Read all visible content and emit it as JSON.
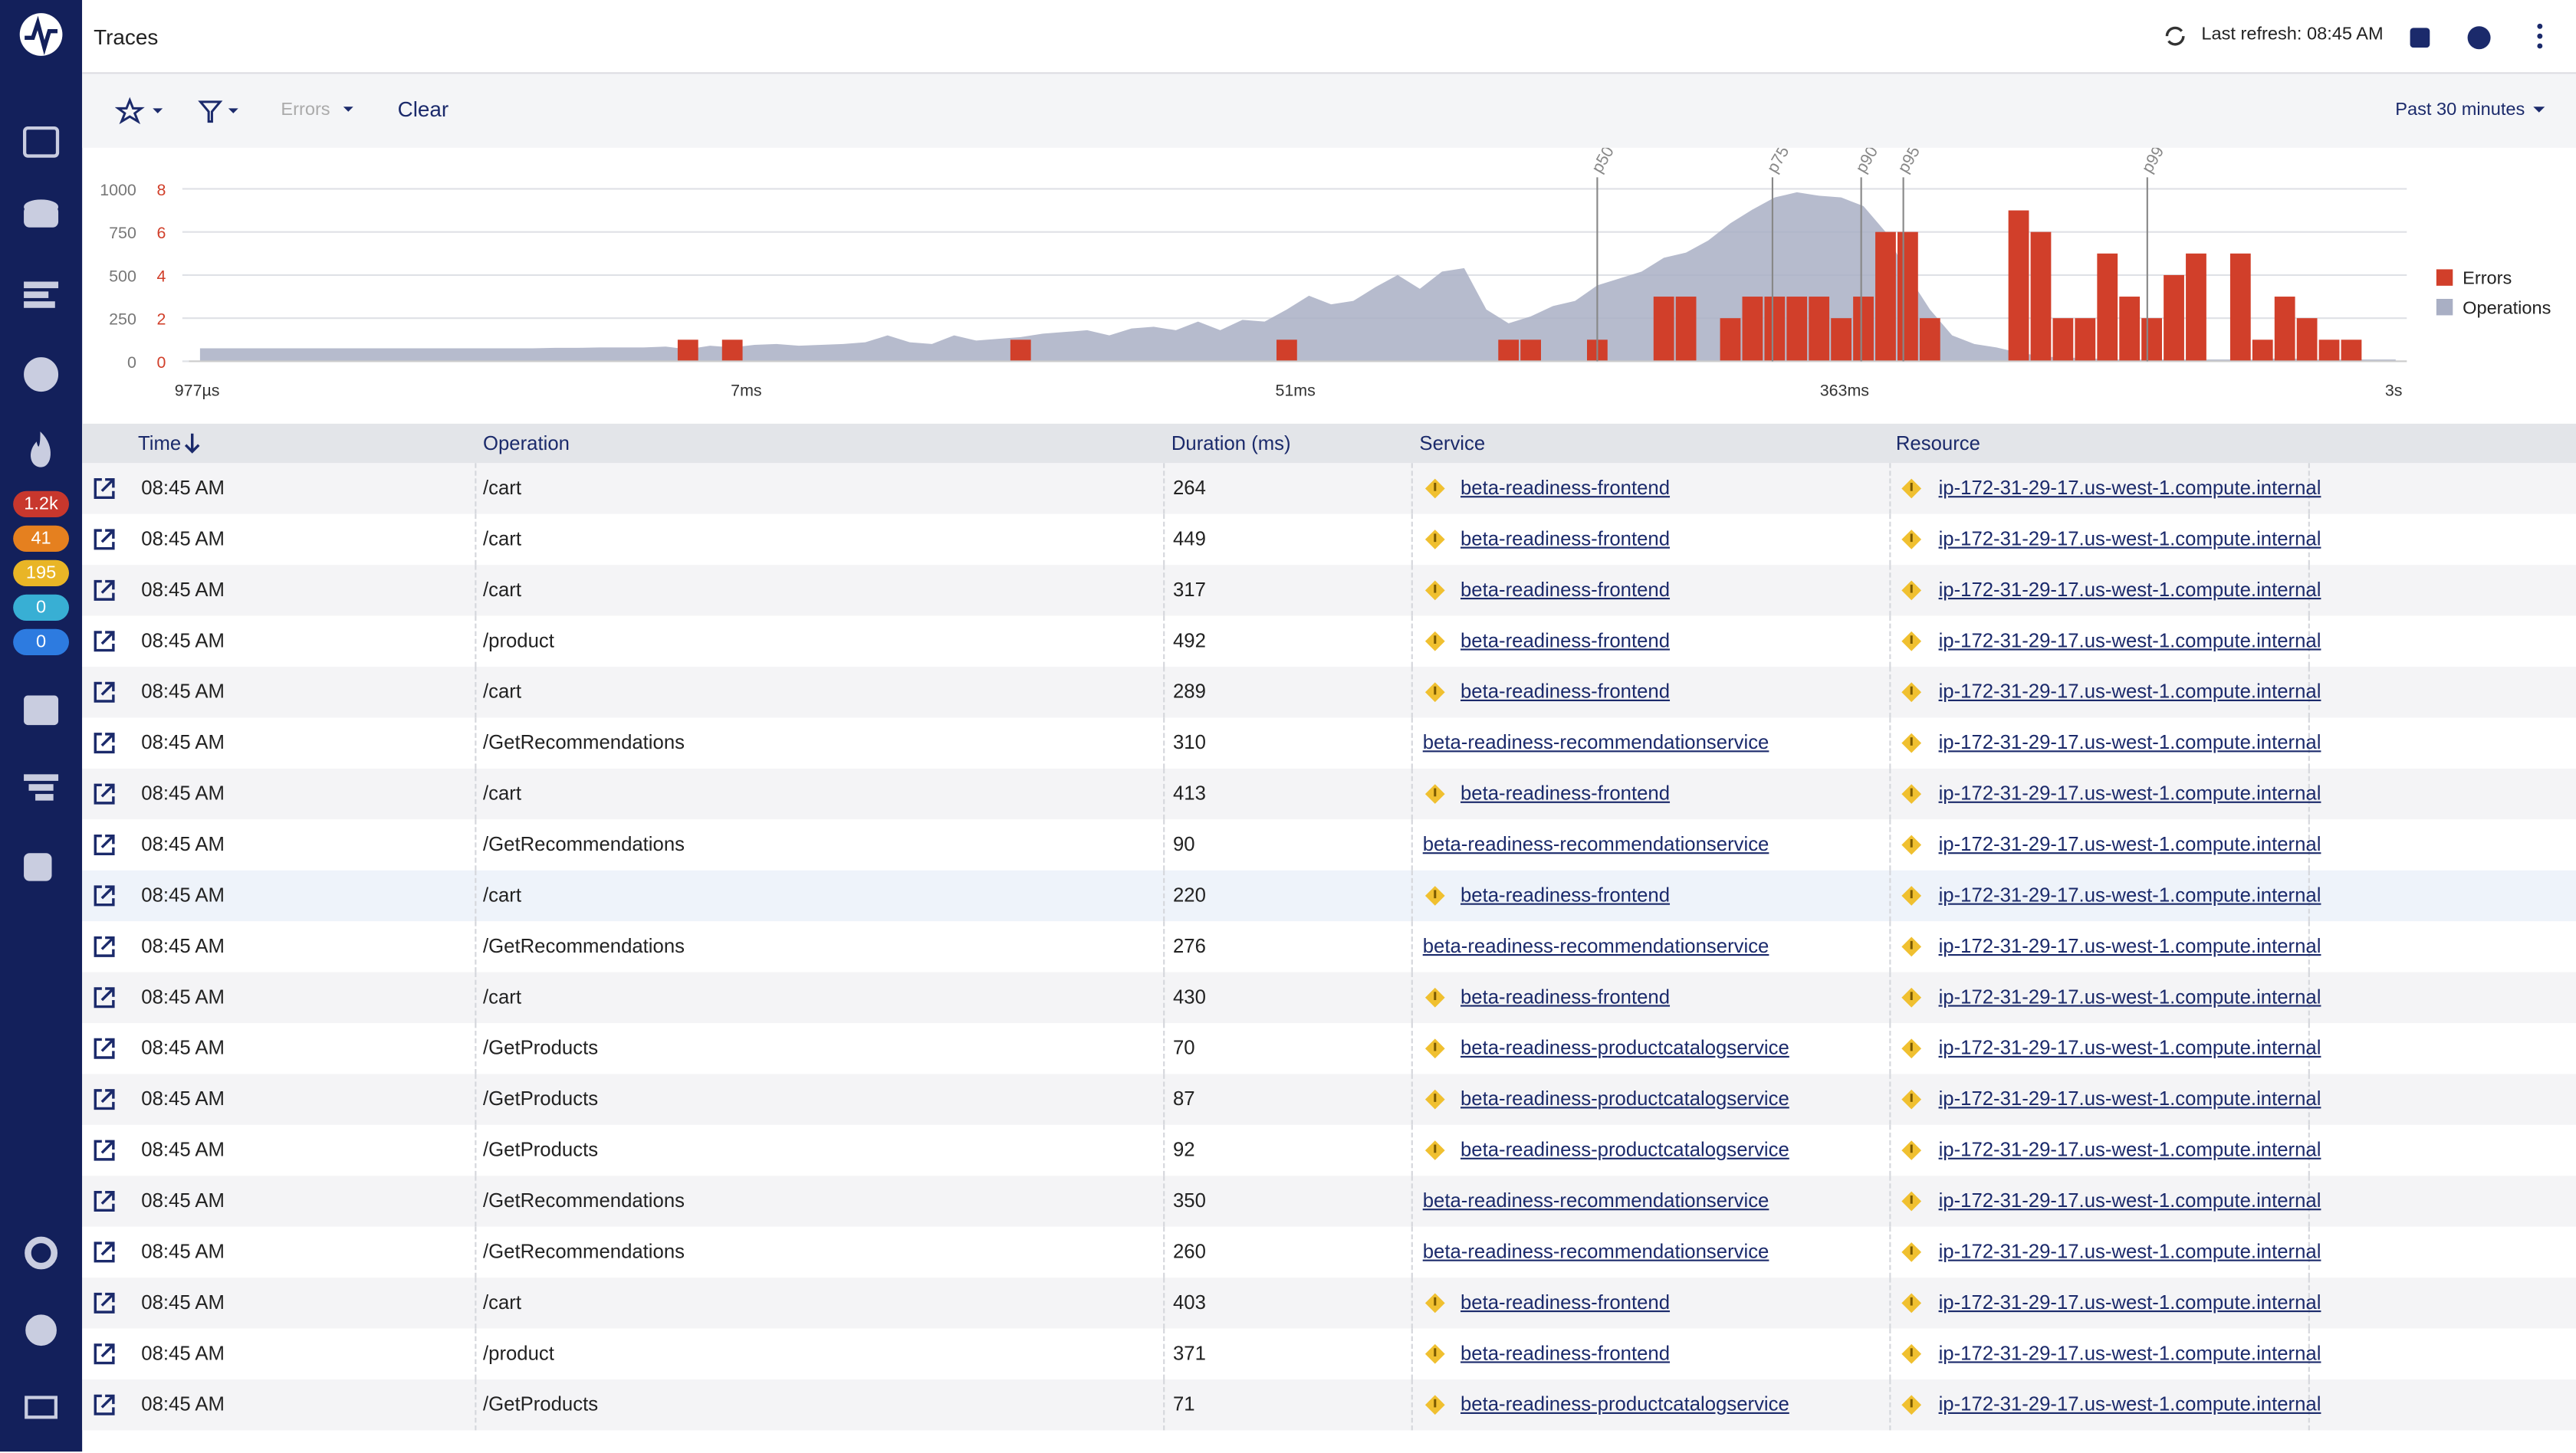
{
  "header": {
    "title": "Traces",
    "last_refresh": "Last refresh: 08:45 AM"
  },
  "sidebar": {
    "badges": [
      {
        "label": "1.2k",
        "color": "#c8372d"
      },
      {
        "label": "41",
        "color": "#e5801f"
      },
      {
        "label": "195",
        "color": "#e9b526"
      },
      {
        "label": "0",
        "color": "#38afd4"
      },
      {
        "label": "0",
        "color": "#2d7be0"
      }
    ]
  },
  "toolbar": {
    "filter": "Errors",
    "clear": "Clear",
    "time_range": "Past 30 minutes"
  },
  "chart": {
    "ylim": [
      0,
      1000
    ],
    "yticks": [
      0,
      250,
      500,
      750,
      1000
    ],
    "y2lim": [
      0,
      8
    ],
    "y2ticks": [
      0,
      2,
      4,
      6,
      8
    ],
    "xtick_labels": [
      "977µs",
      "7ms",
      "51ms",
      "363ms",
      "3s"
    ],
    "percentiles": [
      {
        "label": "p50",
        "bin": 63.5
      },
      {
        "label": "p75",
        "bin": 71.4
      },
      {
        "label": "p90",
        "bin": 75.4
      },
      {
        "label": "p95",
        "bin": 77.3
      },
      {
        "label": "p99",
        "bin": 88.3
      }
    ],
    "series": [
      {
        "name": "Errors",
        "color": "#d13f2a",
        "axis": "y2",
        "values": [
          0,
          0,
          0,
          0,
          0,
          0,
          0,
          0,
          0,
          0,
          0,
          0,
          0,
          0,
          0,
          0,
          0,
          0,
          0,
          0,
          0,
          0,
          1,
          0,
          1,
          0,
          0,
          0,
          0,
          0,
          0,
          0,
          0,
          0,
          0,
          0,
          0,
          1,
          0,
          0,
          0,
          0,
          0,
          0,
          0,
          0,
          0,
          0,
          0,
          1,
          0,
          0,
          0,
          0,
          0,
          0,
          0,
          0,
          0,
          1,
          1,
          0,
          0,
          1,
          0,
          0,
          3,
          3,
          0,
          2,
          3,
          3,
          3,
          3,
          2,
          3,
          6,
          6,
          2,
          0,
          0,
          0,
          7,
          6,
          2,
          2,
          5,
          3,
          2,
          4,
          5,
          0,
          5,
          1,
          3,
          2,
          1,
          1,
          0,
          0
        ]
      },
      {
        "name": "Operations",
        "color": "#a9afc4",
        "values": [
          75,
          75,
          75,
          75,
          75,
          75,
          75,
          75,
          75,
          75,
          75,
          75,
          75,
          75,
          75,
          75,
          78,
          78,
          80,
          80,
          80,
          85,
          70,
          90,
          80,
          95,
          100,
          90,
          95,
          100,
          110,
          150,
          110,
          100,
          150,
          120,
          130,
          140,
          160,
          170,
          180,
          150,
          190,
          200,
          180,
          230,
          180,
          240,
          230,
          300,
          380,
          330,
          350,
          430,
          500,
          420,
          520,
          540,
          300,
          220,
          260,
          320,
          350,
          440,
          480,
          520,
          600,
          630,
          700,
          800,
          880,
          950,
          980,
          960,
          950,
          900,
          750,
          500,
          300,
          150,
          100,
          80,
          50,
          30,
          20,
          20,
          10,
          10,
          10,
          10,
          10,
          10,
          10,
          10,
          20,
          10,
          10,
          10,
          10,
          10
        ]
      }
    ]
  },
  "table": {
    "columns": [
      "Time",
      "Operation",
      "Duration (ms)",
      "Service",
      "Resource"
    ],
    "rows": [
      {
        "time": "08:45 AM",
        "operation": "/cart",
        "duration": 264,
        "service": "beta-readiness-frontend",
        "service_warning": true,
        "resource": "ip-172-31-29-17.us-west-1.compute.internal"
      },
      {
        "time": "08:45 AM",
        "operation": "/cart",
        "duration": 449,
        "service": "beta-readiness-frontend",
        "service_warning": true,
        "resource": "ip-172-31-29-17.us-west-1.compute.internal"
      },
      {
        "time": "08:45 AM",
        "operation": "/cart",
        "duration": 317,
        "service": "beta-readiness-frontend",
        "service_warning": true,
        "resource": "ip-172-31-29-17.us-west-1.compute.internal"
      },
      {
        "time": "08:45 AM",
        "operation": "/product",
        "duration": 492,
        "service": "beta-readiness-frontend",
        "service_warning": true,
        "resource": "ip-172-31-29-17.us-west-1.compute.internal"
      },
      {
        "time": "08:45 AM",
        "operation": "/cart",
        "duration": 289,
        "service": "beta-readiness-frontend",
        "service_warning": true,
        "resource": "ip-172-31-29-17.us-west-1.compute.internal"
      },
      {
        "time": "08:45 AM",
        "operation": "/GetRecommendations",
        "duration": 310,
        "service": "beta-readiness-recommendationservice",
        "service_warning": false,
        "resource": "ip-172-31-29-17.us-west-1.compute.internal"
      },
      {
        "time": "08:45 AM",
        "operation": "/cart",
        "duration": 413,
        "service": "beta-readiness-frontend",
        "service_warning": true,
        "resource": "ip-172-31-29-17.us-west-1.compute.internal"
      },
      {
        "time": "08:45 AM",
        "operation": "/GetRecommendations",
        "duration": 90,
        "service": "beta-readiness-recommendationservice",
        "service_warning": false,
        "resource": "ip-172-31-29-17.us-west-1.compute.internal"
      },
      {
        "time": "08:45 AM",
        "operation": "/cart",
        "duration": 220,
        "service": "beta-readiness-frontend",
        "service_warning": true,
        "resource": "ip-172-31-29-17.us-west-1.compute.internal"
      },
      {
        "time": "08:45 AM",
        "operation": "/GetRecommendations",
        "duration": 276,
        "service": "beta-readiness-recommendationservice",
        "service_warning": false,
        "resource": "ip-172-31-29-17.us-west-1.compute.internal"
      },
      {
        "time": "08:45 AM",
        "operation": "/cart",
        "duration": 430,
        "service": "beta-readiness-frontend",
        "service_warning": true,
        "resource": "ip-172-31-29-17.us-west-1.compute.internal"
      },
      {
        "time": "08:45 AM",
        "operation": "/GetProducts",
        "duration": 70,
        "service": "beta-readiness-productcatalogservice",
        "service_warning": true,
        "resource": "ip-172-31-29-17.us-west-1.compute.internal"
      },
      {
        "time": "08:45 AM",
        "operation": "/GetProducts",
        "duration": 87,
        "service": "beta-readiness-productcatalogservice",
        "service_warning": true,
        "resource": "ip-172-31-29-17.us-west-1.compute.internal"
      },
      {
        "time": "08:45 AM",
        "operation": "/GetProducts",
        "duration": 92,
        "service": "beta-readiness-productcatalogservice",
        "service_warning": true,
        "resource": "ip-172-31-29-17.us-west-1.compute.internal"
      },
      {
        "time": "08:45 AM",
        "operation": "/GetRecommendations",
        "duration": 350,
        "service": "beta-readiness-recommendationservice",
        "service_warning": false,
        "resource": "ip-172-31-29-17.us-west-1.compute.internal"
      },
      {
        "time": "08:45 AM",
        "operation": "/GetRecommendations",
        "duration": 260,
        "service": "beta-readiness-recommendationservice",
        "service_warning": false,
        "resource": "ip-172-31-29-17.us-west-1.compute.internal"
      },
      {
        "time": "08:45 AM",
        "operation": "/cart",
        "duration": 403,
        "service": "beta-readiness-frontend",
        "service_warning": true,
        "resource": "ip-172-31-29-17.us-west-1.compute.internal"
      },
      {
        "time": "08:45 AM",
        "operation": "/product",
        "duration": 371,
        "service": "beta-readiness-frontend",
        "service_warning": true,
        "resource": "ip-172-31-29-17.us-west-1.compute.internal"
      },
      {
        "time": "08:45 AM",
        "operation": "/GetProducts",
        "duration": 71,
        "service": "beta-readiness-productcatalogservice",
        "service_warning": true,
        "resource": "ip-172-31-29-17.us-west-1.compute.internal"
      }
    ]
  }
}
